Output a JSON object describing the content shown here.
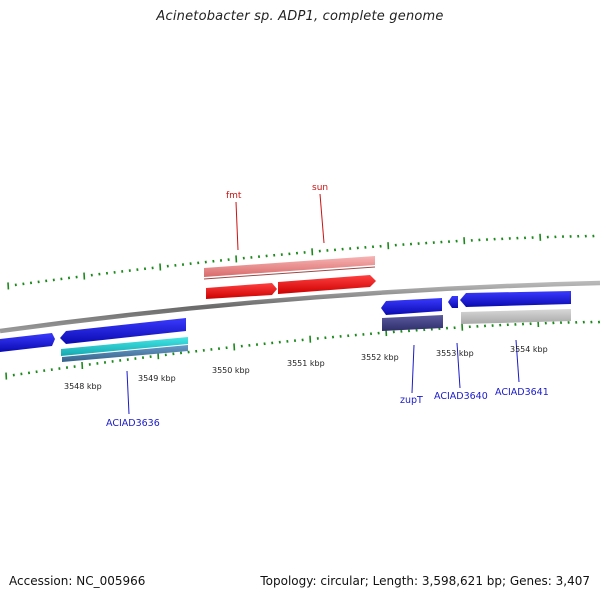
{
  "title": "Acinetobacter sp. ADP1, complete genome",
  "footer": {
    "accession": "Accession: NC_005966",
    "summary": "Topology: circular; Length: 3,598,621 bp; Genes: 3,407"
  },
  "colors": {
    "backbone": "#7a7a7a",
    "tick": "#1a8a1a",
    "gene_red": "#ee1111",
    "gene_pink": "#ee8888",
    "gene_blue": "#1111dd",
    "gene_cyan": "#22cccc",
    "gene_steel": "#4a7aa8",
    "gene_navy": "#44448a",
    "gene_grey": "#bdbdbd",
    "label_red": "#cc1111",
    "label_blue": "#1a1acc"
  },
  "kbp_labels": [
    "3548 kbp",
    "3549 kbp",
    "3550 kbp",
    "3551 kbp",
    "3552 kbp",
    "3553 kbp",
    "3554 kbp"
  ],
  "gene_labels": {
    "fmt": "fmt",
    "sun": "sun",
    "aciad3636": "ACIAD3636",
    "zupT": "zupT",
    "aciad3640": "ACIAD3640",
    "aciad3641": "ACIAD3641"
  }
}
